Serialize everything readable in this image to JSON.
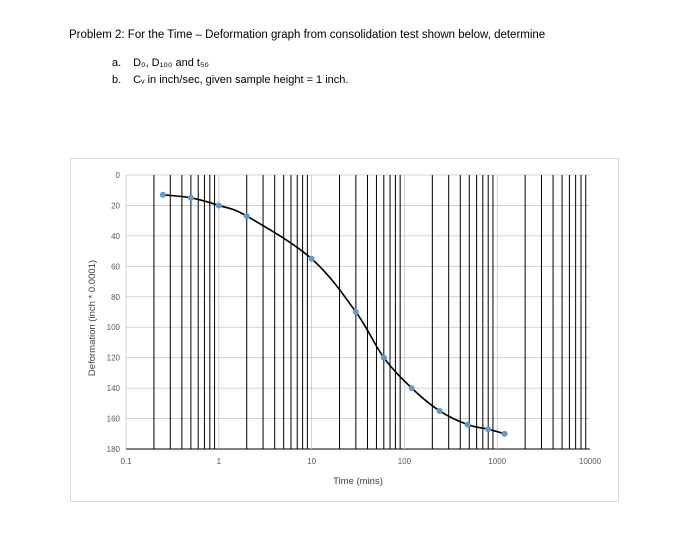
{
  "problem": {
    "heading": "Problem 2: For the Time – Deformation graph from consolidation test shown below, determine",
    "items": [
      {
        "label": "a.",
        "text": "D₀, D₁₀₀ and t₅₀"
      },
      {
        "label": "b.",
        "text": "Cᵥ  in inch/sec,  given sample height = 1 inch."
      }
    ]
  },
  "chart_data": {
    "type": "scatter",
    "xlabel": "Time (mins)",
    "ylabel": "Deformation (inch * 0.0001)",
    "x_scale": "log",
    "xlim": [
      0.1,
      10000
    ],
    "ylim": [
      0,
      180
    ],
    "y_inverted": true,
    "x_ticks": [
      "0.1",
      "1",
      "10",
      "100",
      "1000",
      "10000"
    ],
    "y_ticks": [
      "0",
      "20",
      "40",
      "60",
      "80",
      "100",
      "120",
      "140",
      "160",
      "180"
    ],
    "grid": "log-vertical and horizontal",
    "marker_color": "#5b9bd5",
    "line_color": "#000000",
    "series": [
      {
        "x": [
          0.25,
          0.5,
          1,
          2,
          10,
          30,
          60,
          120,
          240,
          480,
          800,
          1200
        ],
        "y": [
          13,
          15,
          20,
          27,
          55,
          90,
          120,
          140,
          155,
          164,
          167,
          170
        ]
      }
    ]
  }
}
